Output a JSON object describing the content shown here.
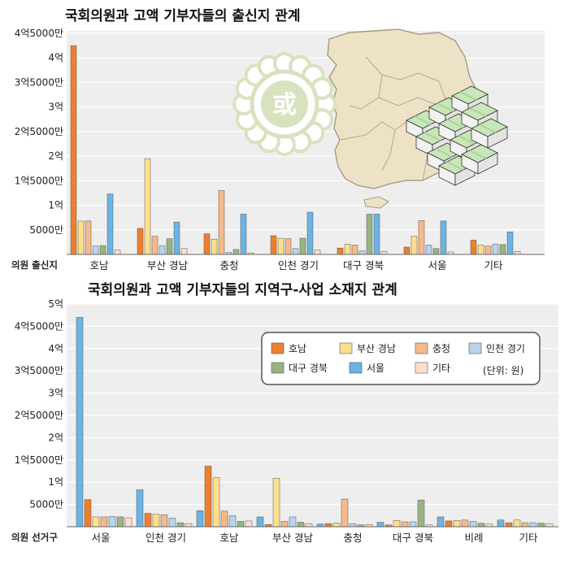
{
  "colors": {
    "series": [
      "#ee7f2d",
      "#fde08a",
      "#f7b98a",
      "#b6d4ee",
      "#98b483",
      "#6bb4e4",
      "#fbe0d0"
    ],
    "plot_bg": "#eeeeee",
    "grid": "#ffffff",
    "map_fill": "#ede1c6",
    "map_line": "#a89a80",
    "seal": "#d9e2bf",
    "money": "#a9d49a"
  },
  "chart_data": [
    {
      "type": "bar",
      "title": "국회의원과 고액 기부자들의 출신지 관계",
      "xlabel": "의원 출신지",
      "ylabel": "",
      "ylim": [
        0,
        45000
      ],
      "yticks": [
        {
          "value": 5000,
          "label": "5000만"
        },
        {
          "value": 10000,
          "label": "1억"
        },
        {
          "value": 15000,
          "label": "1억5000만"
        },
        {
          "value": 20000,
          "label": "2억"
        },
        {
          "value": 25000,
          "label": "2억5000만"
        },
        {
          "value": 30000,
          "label": "3억"
        },
        {
          "value": 35000,
          "label": "3억5000만"
        },
        {
          "value": 40000,
          "label": "4억"
        },
        {
          "value": 45000,
          "label": "4억5000만"
        }
      ],
      "categories": [
        "호남",
        "부산 경남",
        "충청",
        "인천 경기",
        "대구 경북",
        "서울",
        "기타"
      ],
      "series": [
        {
          "name": "호남",
          "values": [
            42500,
            5300,
            4200,
            3800,
            1300,
            1500,
            2900
          ]
        },
        {
          "name": "부산 경남",
          "values": [
            6800,
            19500,
            3100,
            3300,
            2100,
            3700,
            1900
          ]
        },
        {
          "name": "충청",
          "values": [
            6800,
            3700,
            13000,
            3200,
            1900,
            6900,
            1700
          ]
        },
        {
          "name": "인천 경기",
          "values": [
            1700,
            1800,
            400,
            1200,
            700,
            1900,
            2100
          ]
        },
        {
          "name": "대구 경북",
          "values": [
            1800,
            3200,
            1000,
            3300,
            8200,
            1200,
            2000
          ]
        },
        {
          "name": "서울",
          "values": [
            12300,
            6600,
            8200,
            8600,
            8200,
            6800,
            4600
          ]
        },
        {
          "name": "기타",
          "values": [
            900,
            1200,
            300,
            900,
            600,
            500,
            600
          ]
        }
      ]
    },
    {
      "type": "bar",
      "title": "국회의원과 고액 기부자들의 지역구-사업 소재지 관계",
      "xlabel": "의원 선거구",
      "ylabel": "",
      "ylim": [
        0,
        50000
      ],
      "unit_note": "(단위: 원)",
      "yticks": [
        {
          "value": 5000,
          "label": "5000만"
        },
        {
          "value": 10000,
          "label": "1억"
        },
        {
          "value": 15000,
          "label": "1억5000만"
        },
        {
          "value": 20000,
          "label": "2억"
        },
        {
          "value": 25000,
          "label": "2억5000만"
        },
        {
          "value": 30000,
          "label": "3억"
        },
        {
          "value": 35000,
          "label": "3억5000만"
        },
        {
          "value": 40000,
          "label": "4억"
        },
        {
          "value": 45000,
          "label": "4억5000만"
        },
        {
          "value": 50000,
          "label": "5억"
        }
      ],
      "categories": [
        "서울",
        "인천 경기",
        "호남",
        "부산 경남",
        "충청",
        "대구 경북",
        "비례",
        "기타"
      ],
      "series": [
        {
          "name": "서울",
          "values": [
            47000,
            8300,
            3600,
            2200,
            600,
            1000,
            2200,
            1500
          ]
        },
        {
          "name": "호남",
          "values": [
            6100,
            3000,
            13600,
            500,
            700,
            400,
            1300,
            900
          ]
        },
        {
          "name": "부산 경남",
          "values": [
            2200,
            2800,
            11000,
            10900,
            800,
            1400,
            1400,
            1500
          ]
        },
        {
          "name": "충청",
          "values": [
            2200,
            2700,
            3500,
            1200,
            6200,
            1100,
            1500,
            900
          ]
        },
        {
          "name": "인천 경기",
          "values": [
            2300,
            1900,
            2500,
            2200,
            700,
            1100,
            1200,
            900
          ]
        },
        {
          "name": "대구 경북",
          "values": [
            2200,
            900,
            1200,
            1000,
            400,
            6000,
            800,
            800
          ]
        },
        {
          "name": "기타",
          "values": [
            2000,
            700,
            1300,
            700,
            500,
            400,
            600,
            700
          ]
        }
      ],
      "legend": {
        "position": "top-right",
        "items": [
          "호남",
          "부산 경남",
          "충청",
          "인천 경기",
          "대구 경북",
          "서울",
          "기타"
        ]
      }
    }
  ]
}
